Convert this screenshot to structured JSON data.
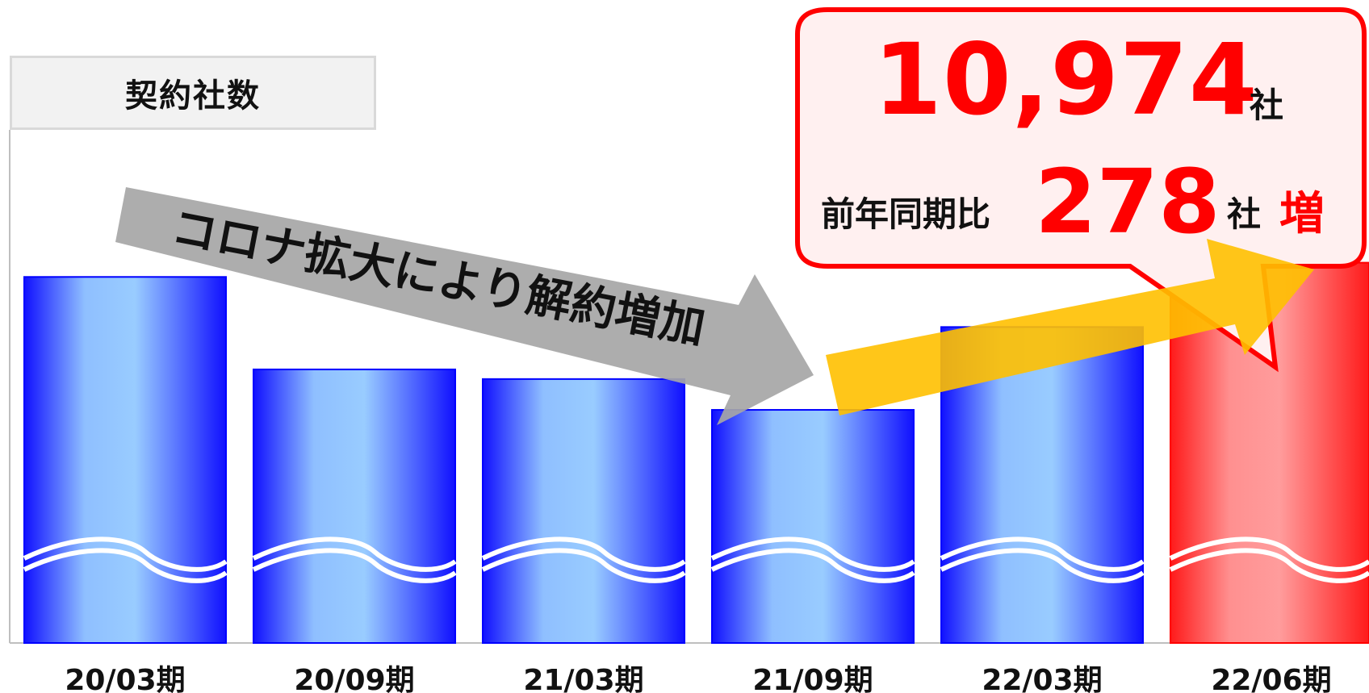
{
  "chart_data": {
    "type": "bar",
    "title": "契約社数",
    "categories": [
      "20/03期",
      "20/09期",
      "21/03期",
      "21/09期",
      "22/03期",
      "22/06期"
    ],
    "values": [
      10900,
      10420,
      10370,
      10210,
      10640,
      10974
    ],
    "highlight_index": 5,
    "ylim": [
      9000,
      11500
    ],
    "axis_break": true,
    "colors": {
      "bar": "#1a1aff",
      "bar_light": "#99ccff",
      "highlight": "#ff2020",
      "highlight_light": "#ff9999"
    },
    "annotations": {
      "down_arrow_text": "コロナ拡大により解約増加"
    }
  },
  "callout": {
    "count": "10,974",
    "count_unit": "社",
    "yoy_label": "前年同期比",
    "yoy_value": "278",
    "yoy_unit": "社",
    "yoy_suffix": "増",
    "bg_color": "#fff0f0",
    "border_color": "#ff0000"
  }
}
